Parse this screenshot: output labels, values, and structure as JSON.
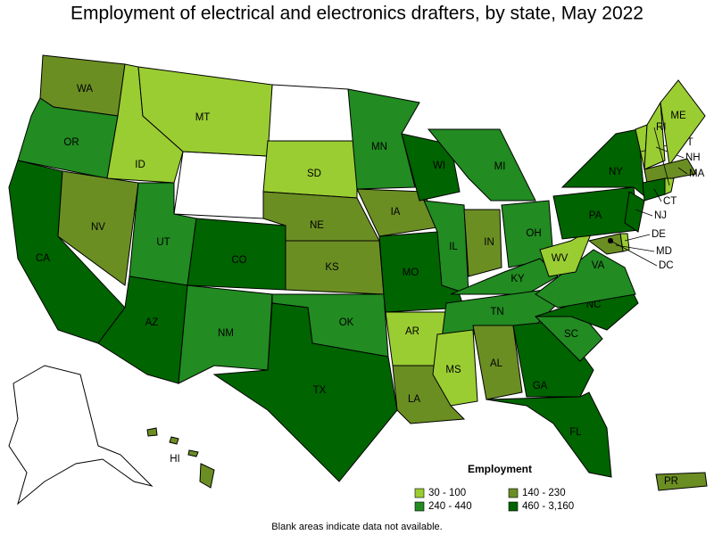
{
  "chart_data": {
    "type": "choropleth",
    "title": "Employment of electrical and electronics drafters, by state, May 2022",
    "legend_title": "Employment",
    "legend": [
      {
        "label": "30 - 100",
        "color": "#9acd32"
      },
      {
        "label": "140 - 230",
        "color": "#6b8e23"
      },
      {
        "label": "240 - 440",
        "color": "#228b22"
      },
      {
        "label": "460 - 3,160",
        "color": "#006400"
      }
    ],
    "footnote": "Blank areas indicate data not available.",
    "states": [
      {
        "name": "WA",
        "group": 1
      },
      {
        "name": "OR",
        "group": 2
      },
      {
        "name": "CA",
        "group": 3
      },
      {
        "name": "NV",
        "group": 1
      },
      {
        "name": "ID",
        "group": 0
      },
      {
        "name": "MT",
        "group": 0
      },
      {
        "name": "UT",
        "group": 2
      },
      {
        "name": "AZ",
        "group": 3
      },
      {
        "name": "CO",
        "group": 3
      },
      {
        "name": "NM",
        "group": 2
      },
      {
        "name": "SD",
        "group": 0
      },
      {
        "name": "NE",
        "group": 1
      },
      {
        "name": "KS",
        "group": 1
      },
      {
        "name": "OK",
        "group": 2
      },
      {
        "name": "TX",
        "group": 3
      },
      {
        "name": "MN",
        "group": 2
      },
      {
        "name": "IA",
        "group": 1
      },
      {
        "name": "MO",
        "group": 3
      },
      {
        "name": "AR",
        "group": 0
      },
      {
        "name": "LA",
        "group": 1
      },
      {
        "name": "WI",
        "group": 3
      },
      {
        "name": "IL",
        "group": 2
      },
      {
        "name": "MI",
        "group": 2
      },
      {
        "name": "IN",
        "group": 1
      },
      {
        "name": "OH",
        "group": 2
      },
      {
        "name": "KY",
        "group": 2
      },
      {
        "name": "TN",
        "group": 2
      },
      {
        "name": "MS",
        "group": 0
      },
      {
        "name": "AL",
        "group": 1
      },
      {
        "name": "GA",
        "group": 3
      },
      {
        "name": "FL",
        "group": 3
      },
      {
        "name": "SC",
        "group": 2
      },
      {
        "name": "NC",
        "group": 3
      },
      {
        "name": "VA",
        "group": 2
      },
      {
        "name": "WV",
        "group": 0
      },
      {
        "name": "PA",
        "group": 3
      },
      {
        "name": "NY",
        "group": 3
      },
      {
        "name": "VT",
        "group": 0
      },
      {
        "name": "NH",
        "group": 0
      },
      {
        "name": "ME",
        "group": 0
      },
      {
        "name": "MA",
        "group": 1
      },
      {
        "name": "CT",
        "group": 3
      },
      {
        "name": "RI",
        "group": 0
      },
      {
        "name": "NJ",
        "group": 3
      },
      {
        "name": "DE",
        "group": 0
      },
      {
        "name": "MD",
        "group": 1
      },
      {
        "name": "DC",
        "group": 3
      },
      {
        "name": "HI",
        "group": 1
      },
      {
        "name": "PR",
        "group": 1
      }
    ]
  }
}
